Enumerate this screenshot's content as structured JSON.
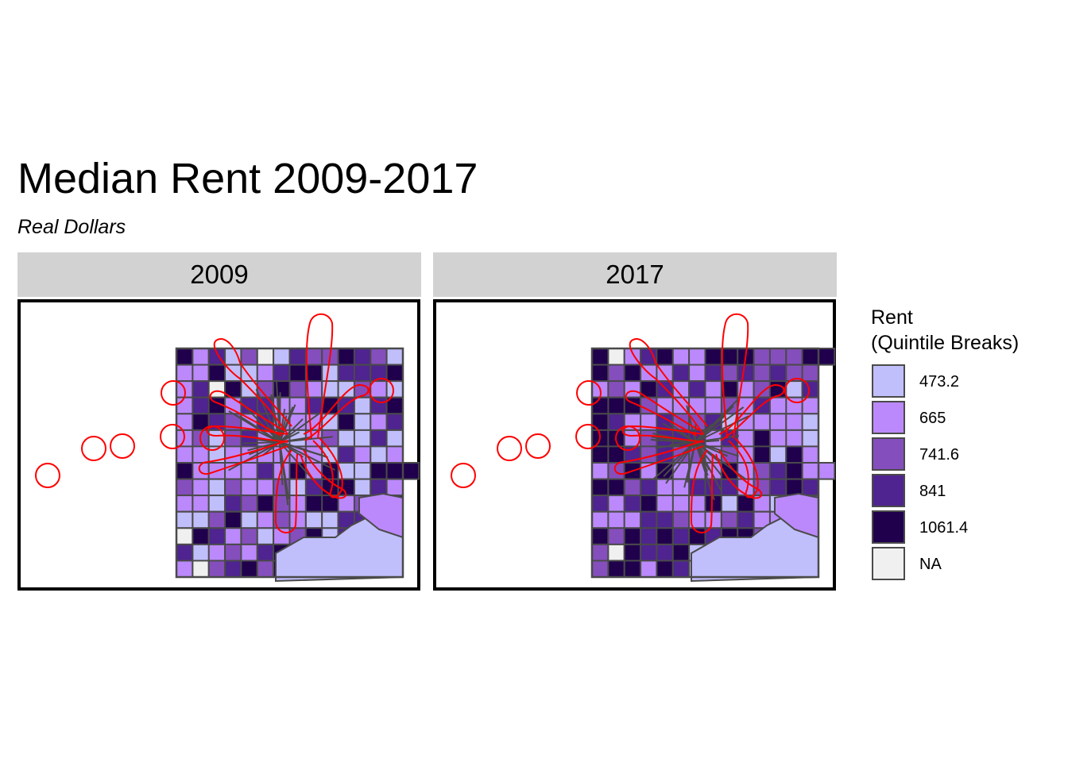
{
  "title": "Median Rent 2009-2017",
  "subtitle": "Real Dollars",
  "colors": {
    "boundary": "#ff0000",
    "tract_border": "#4a4a4a",
    "strip": "#d2d2d2",
    "na": "#f0f0f0"
  },
  "legend": {
    "title_line1": "Rent",
    "title_line2": "(Quintile Breaks)",
    "items": [
      {
        "label": "473.2",
        "color": "#c1befc"
      },
      {
        "label": "665",
        "color": "#bb89fb"
      },
      {
        "label": "741.6",
        "color": "#854ebd"
      },
      {
        "label": "841",
        "color": "#4f2390"
      },
      {
        "label": "1061.4",
        "color": "#20004d"
      },
      {
        "label": "NA",
        "color": "#f0f0f0"
      }
    ]
  },
  "panels": [
    {
      "label": "2009",
      "palette": "pA"
    },
    {
      "label": "2017",
      "palette": "pB"
    }
  ]
}
